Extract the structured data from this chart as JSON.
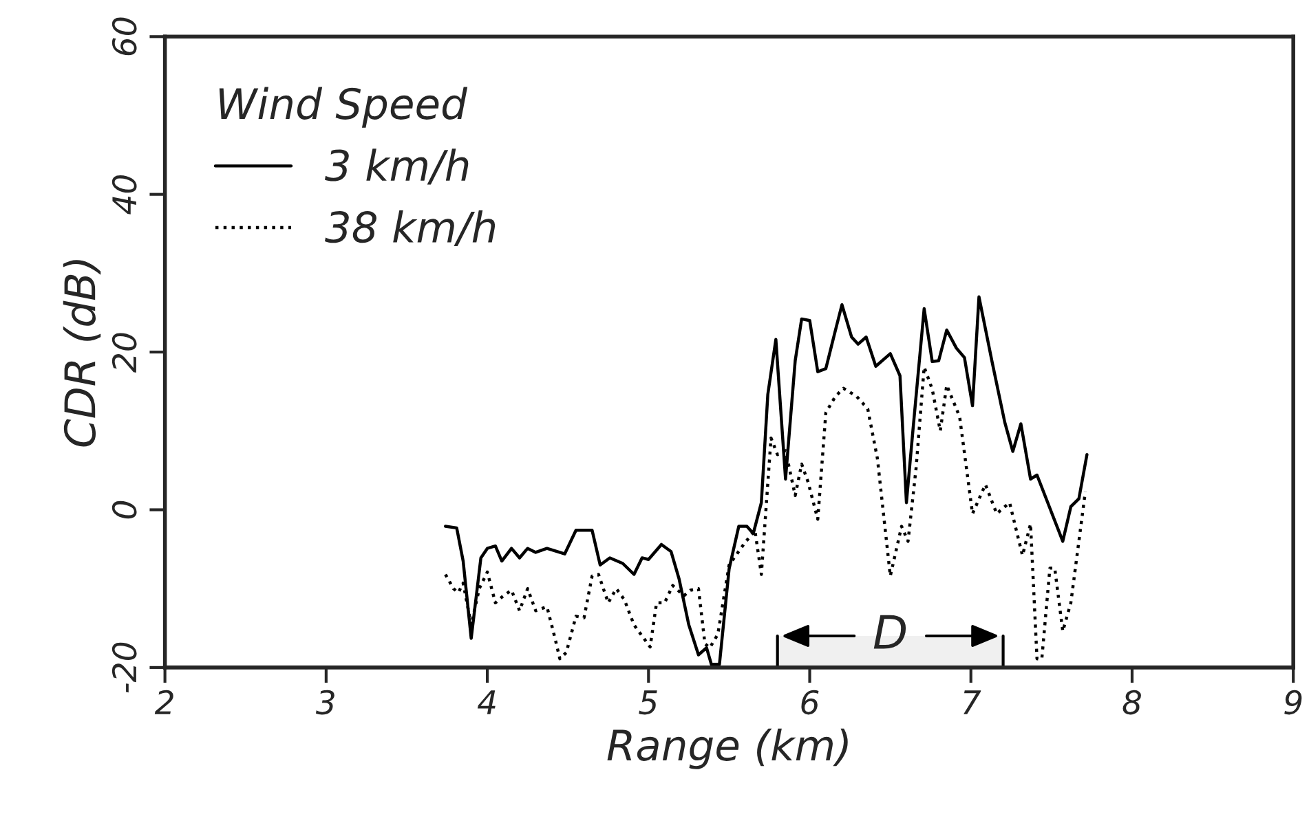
{
  "chart_data": {
    "type": "line",
    "xlabel": "Range (km)",
    "ylabel": "CDR (dB)",
    "legend_title": "Wind Speed",
    "legend": "top left",
    "grid": false,
    "xlim": [
      2,
      9
    ],
    "xticks": [
      2,
      3,
      4,
      5,
      6,
      7,
      8,
      9
    ],
    "ylim": [
      -20,
      60
    ],
    "yticks": [
      -20,
      0,
      20,
      40,
      60
    ],
    "bands": [
      {
        "axis": "x",
        "from": 5.8,
        "to": 7.2,
        "label": "D"
      }
    ],
    "series": [
      {
        "name": "3 km/h",
        "color": "#000000",
        "line_style": "solid",
        "x": [
          3.74,
          3.81,
          3.85,
          3.9,
          3.96,
          4.0,
          4.05,
          4.09,
          4.15,
          4.2,
          4.25,
          4.3,
          4.37,
          4.48,
          4.55,
          4.65,
          4.7,
          4.76,
          4.84,
          4.91,
          4.96,
          5.0,
          5.08,
          5.14,
          5.19,
          5.25,
          5.31,
          5.36,
          5.39,
          5.44,
          5.5,
          5.56,
          5.61,
          5.65,
          5.7,
          5.74,
          5.79,
          5.85,
          5.91,
          5.95,
          6.0,
          6.05,
          6.1,
          6.16,
          6.2,
          6.26,
          6.3,
          6.35,
          6.41,
          6.5,
          6.56,
          6.6,
          6.64,
          6.71,
          6.76,
          6.8,
          6.85,
          6.91,
          6.96,
          7.01,
          7.05,
          7.13,
          7.21,
          7.26,
          7.31,
          7.37,
          7.41,
          7.57,
          7.62,
          7.67,
          7.72
        ],
        "values": [
          -2.1,
          -2.3,
          -6.5,
          -16.3,
          -6.1,
          -4.9,
          -4.6,
          -6.5,
          -4.9,
          -6.1,
          -4.9,
          -5.4,
          -4.9,
          -5.6,
          -2.6,
          -2.6,
          -7.0,
          -6.1,
          -6.8,
          -8.2,
          -6.1,
          -6.3,
          -4.4,
          -5.3,
          -8.8,
          -14.6,
          -18.4,
          -17.5,
          -19.6,
          -19.6,
          -7.5,
          -2.1,
          -2.1,
          -3.0,
          0.9,
          14.6,
          21.6,
          3.9,
          18.9,
          24.2,
          24.0,
          17.5,
          17.9,
          22.8,
          26,
          21.9,
          21.0,
          21.9,
          18.2,
          19.8,
          17.0,
          0.9,
          10.0,
          25.5,
          18.8,
          18.9,
          22.8,
          20.5,
          19.3,
          13.2,
          27,
          18.9,
          11.1,
          7.4,
          10.9,
          3.9,
          4.4,
          -4.0,
          0.4,
          1.4,
          7.0
        ]
      },
      {
        "name": "38 km/h",
        "color": "#000000",
        "line_style": "dotted",
        "x": [
          3.74,
          3.79,
          3.82,
          3.85,
          3.9,
          3.95,
          4.0,
          4.05,
          4.1,
          4.15,
          4.2,
          4.25,
          4.3,
          4.37,
          4.42,
          4.45,
          4.49,
          4.55,
          4.6,
          4.65,
          4.69,
          4.75,
          4.8,
          4.85,
          4.91,
          5.01,
          5.05,
          5.1,
          5.15,
          5.22,
          5.26,
          5.31,
          5.35,
          5.38,
          5.43,
          5.5,
          5.59,
          5.66,
          5.7,
          5.76,
          5.8,
          5.85,
          5.91,
          5.95,
          5.99,
          6.05,
          6.1,
          6.16,
          6.21,
          6.29,
          6.36,
          6.42,
          6.5,
          6.57,
          6.61,
          6.66,
          6.71,
          6.76,
          6.81,
          6.85,
          6.93,
          7.01,
          7.09,
          7.16,
          7.24,
          7.32,
          7.37,
          7.41,
          7.44,
          7.49,
          7.52,
          7.57,
          7.62,
          7.71
        ],
        "values": [
          -8.2,
          -10.0,
          -10.5,
          -9.3,
          -14.6,
          -10.0,
          -7.9,
          -11.8,
          -10.9,
          -10.2,
          -12.8,
          -10.0,
          -12.8,
          -12.3,
          -16.3,
          -18.9,
          -18.1,
          -13.5,
          -13.7,
          -8.4,
          -8.2,
          -11.8,
          -10.0,
          -11.4,
          -14.6,
          -17.4,
          -11.8,
          -11.8,
          -9.6,
          -10.9,
          -10.2,
          -10.0,
          -17.0,
          -17.5,
          -15.8,
          -7.0,
          -4.4,
          -2.6,
          -8.2,
          9.1,
          7.0,
          7.5,
          1.8,
          5.8,
          3.5,
          -1.2,
          12.3,
          14.4,
          15.4,
          14.4,
          12.8,
          6.5,
          -8.4,
          -2.1,
          -4.0,
          5.3,
          18.1,
          15.3,
          10.0,
          15.8,
          11.8,
          -0.5,
          3.2,
          -0.5,
          0.9,
          -5.8,
          -1.8,
          -18.9,
          -18.9,
          -7.4,
          -7.4,
          -15.4,
          -11.8,
          2.3
        ]
      }
    ]
  }
}
